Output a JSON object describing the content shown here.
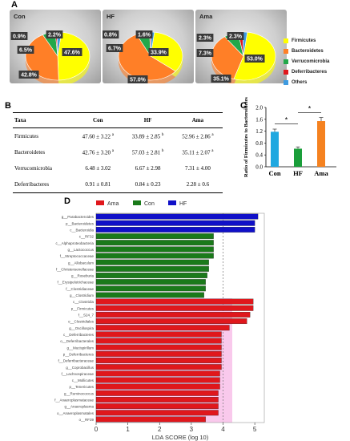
{
  "panels": {
    "A": "A",
    "B": "B",
    "C": "C",
    "D": "D"
  },
  "chart_data": [
    {
      "type": "pie",
      "panel": "A",
      "legend": [
        {
          "label": "Firmicutes",
          "color": "#ffff00"
        },
        {
          "label": "Bacteroidetes",
          "color": "#ff7f27"
        },
        {
          "label": "Verrucomicrobia",
          "color": "#22a84a"
        },
        {
          "label": "Deferribacteres",
          "color": "#e0171c"
        },
        {
          "label": "Others",
          "color": "#3f9be0"
        }
      ],
      "pies": [
        {
          "name": "Con",
          "values": [
            47.6,
            42.8,
            6.5,
            0.9,
            2.2
          ],
          "labels": [
            "47.6%",
            "42.8%",
            "6.5%",
            "0.9%",
            "2.2%"
          ]
        },
        {
          "name": "HF",
          "values": [
            33.9,
            57.0,
            6.7,
            0.8,
            1.6
          ],
          "labels": [
            "33.9%",
            "57.0%",
            "6.7%",
            "0.8%",
            "1.6%"
          ]
        },
        {
          "name": "Ama",
          "values": [
            53.0,
            35.1,
            7.3,
            2.3,
            2.3
          ],
          "labels": [
            "53.0%",
            "35.1%",
            "7.3%",
            "2.3%",
            "2.3%"
          ]
        }
      ]
    },
    {
      "type": "table",
      "panel": "B",
      "columns": [
        "Taxa",
        "Con",
        "HF",
        "Ama"
      ],
      "rows": [
        {
          "taxa": "Firmicutes",
          "con": "47.60 ± 3.22",
          "con_sup": "a",
          "hf": "33.89 ± 2.85",
          "hf_sup": "b",
          "ama": "52.96 ± 2.86",
          "ama_sup": "a"
        },
        {
          "taxa": "Bacteroidetes",
          "con": "42.76 ± 3.20",
          "con_sup": "a",
          "hf": "57.03 ± 2.81",
          "hf_sup": "b",
          "ama": "35.11 ± 2.07",
          "ama_sup": "a"
        },
        {
          "taxa": "Verrucomicrobia",
          "con": "6.48 ± 3.02",
          "con_sup": "",
          "hf": "6.67 ± 2.98",
          "hf_sup": "",
          "ama": "7.31 ± 4.00",
          "ama_sup": ""
        },
        {
          "taxa": "Deferribacteres",
          "con": "0.91 ± 0.81",
          "con_sup": "",
          "hf": "0.84 ± 0.23",
          "hf_sup": "",
          "ama": "2.28 ± 0.6",
          "ama_sup": ""
        }
      ]
    },
    {
      "type": "bar",
      "panel": "C",
      "ylabel": "Ratio of Firmicutes to Bacteroidetes",
      "categories": [
        "Con",
        "HF",
        "Ama"
      ],
      "values": [
        1.18,
        0.61,
        1.54
      ],
      "errors": [
        0.09,
        0.06,
        0.12
      ],
      "colors": [
        "#1fa8e0",
        "#1a9e3a",
        "#f58220"
      ],
      "ylim": [
        0,
        2.0
      ],
      "yticks": [
        "0.0",
        "0.4",
        "0.8",
        "1.2",
        "1.6",
        "2.0"
      ],
      "significance": [
        {
          "from": 0,
          "to": 1,
          "label": "*"
        },
        {
          "from": 1,
          "to": 2,
          "label": "*"
        }
      ]
    },
    {
      "type": "bar",
      "panel": "D",
      "orientation": "horizontal",
      "xlabel": "LDA SCORE (log 10)",
      "xlim": [
        0,
        5.3
      ],
      "xticks": [
        "0",
        "1",
        "2",
        "3",
        "4",
        "5"
      ],
      "threshold": 4,
      "series": [
        {
          "name": "Ama",
          "color": "#e0171c"
        },
        {
          "name": "Con",
          "color": "#1a7a1a"
        },
        {
          "name": "HF",
          "color": "#1010c8"
        }
      ],
      "bars": [
        {
          "label": "g__Parabacteroides",
          "group": "HF",
          "value": 5.1
        },
        {
          "label": "p__Bacteroidetes",
          "group": "HF",
          "value": 5.0
        },
        {
          "label": "c__Bacteroidia",
          "group": "HF",
          "value": 5.0
        },
        {
          "label": "c__RF32",
          "group": "Con",
          "value": 3.7
        },
        {
          "label": "c__Alphaproteobacteria",
          "group": "Con",
          "value": 3.7
        },
        {
          "label": "g__Lactococcus",
          "group": "Con",
          "value": 3.7
        },
        {
          "label": "f__Streptococcaceae",
          "group": "Con",
          "value": 3.7
        },
        {
          "label": "g__Allobaculum",
          "group": "Con",
          "value": 3.55
        },
        {
          "label": "f__Christensenellaceae",
          "group": "Con",
          "value": 3.55
        },
        {
          "label": "g__Roseburia",
          "group": "Con",
          "value": 3.5
        },
        {
          "label": "f__Erysipelotrichaceae",
          "group": "Con",
          "value": 3.45
        },
        {
          "label": "f__Clostridiaceae",
          "group": "Con",
          "value": 3.45
        },
        {
          "label": "g__Clostridium",
          "group": "Con",
          "value": 3.4
        },
        {
          "label": "c__Clostridia",
          "group": "Ama",
          "value": 4.95
        },
        {
          "label": "p__Firmicutes",
          "group": "Ama",
          "value": 4.95
        },
        {
          "label": "f__S24_7",
          "group": "Ama",
          "value": 4.85
        },
        {
          "label": "o__Clostridiales",
          "group": "Ama",
          "value": 4.75
        },
        {
          "label": "g__Oscillospira",
          "group": "Ama",
          "value": 4.2
        },
        {
          "label": "c__Deferribacteres",
          "group": "Ama",
          "value": 3.95
        },
        {
          "label": "o__Deferribacterales",
          "group": "Ama",
          "value": 3.95
        },
        {
          "label": "g__Mucispirillum",
          "group": "Ama",
          "value": 3.95
        },
        {
          "label": "p__Deferribacteres",
          "group": "Ama",
          "value": 3.95
        },
        {
          "label": "f__Deferribacteraceae",
          "group": "Ama",
          "value": 3.95
        },
        {
          "label": "g__Coprobacillus",
          "group": "Ama",
          "value": 3.95
        },
        {
          "label": "f__Lachnospiraceae",
          "group": "Ama",
          "value": 3.9
        },
        {
          "label": "c__Mollicutes",
          "group": "Ama",
          "value": 3.9
        },
        {
          "label": "p__Tenericutes",
          "group": "Ama",
          "value": 3.9
        },
        {
          "label": "g__Ruminococcus",
          "group": "Ama",
          "value": 3.85
        },
        {
          "label": "f__Anaeroplasmataceae",
          "group": "Ama",
          "value": 3.85
        },
        {
          "label": "g__Anaeroplasma",
          "group": "Ama",
          "value": 3.85
        },
        {
          "label": "o__Anaeroplasmatales",
          "group": "Ama",
          "value": 3.85
        },
        {
          "label": "o__RF39",
          "group": "Ama",
          "value": 3.45
        }
      ]
    }
  ]
}
